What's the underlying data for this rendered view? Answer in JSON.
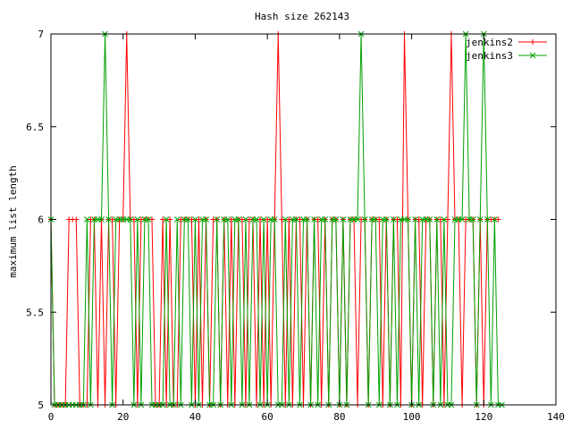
{
  "chart_data": {
    "type": "line",
    "title": "Hash size 262143",
    "xlabel": "",
    "ylabel": "maximum list length",
    "xlim": [
      0,
      140
    ],
    "ylim": [
      5,
      7
    ],
    "x_ticks": [
      "0",
      "20",
      "40",
      "60",
      "80",
      "100",
      "120",
      "140"
    ],
    "y_ticks": [
      "5",
      "5.5",
      "6",
      "6.5",
      "7"
    ],
    "grid": false,
    "legend_position": "top-right",
    "series": [
      {
        "name": "jenkins2",
        "color": "#ff0000",
        "marker": "plus",
        "x": [
          0,
          1,
          2,
          3,
          4,
          5,
          6,
          7,
          8,
          9,
          10,
          11,
          12,
          13,
          14,
          15,
          16,
          17,
          18,
          19,
          20,
          21,
          22,
          23,
          24,
          25,
          26,
          27,
          28,
          29,
          30,
          31,
          32,
          33,
          34,
          35,
          36,
          37,
          38,
          39,
          40,
          41,
          42,
          43,
          44,
          45,
          46,
          47,
          48,
          49,
          50,
          51,
          52,
          53,
          54,
          55,
          56,
          57,
          58,
          59,
          60,
          61,
          62,
          63,
          64,
          65,
          66,
          67,
          68,
          69,
          70,
          71,
          72,
          73,
          74,
          75,
          76,
          77,
          78,
          79,
          80,
          81,
          82,
          83,
          84,
          85,
          86,
          87,
          88,
          89,
          90,
          91,
          92,
          93,
          94,
          95,
          96,
          97,
          98,
          99,
          100,
          101,
          102,
          103,
          104,
          105,
          106,
          107,
          108,
          109,
          110,
          111,
          112,
          113,
          114,
          115,
          116,
          117,
          118,
          119,
          120,
          121,
          122,
          123,
          124
        ],
        "y": [
          6,
          5,
          5,
          5,
          5,
          6,
          6,
          6,
          5,
          5,
          5,
          6,
          6,
          5,
          6,
          5,
          6,
          6,
          5,
          6,
          6,
          7,
          6,
          6,
          5,
          6,
          6,
          6,
          6,
          5,
          5,
          6,
          5,
          6,
          5,
          5,
          6,
          6,
          6,
          6,
          5,
          6,
          5,
          6,
          5,
          6,
          6,
          5,
          6,
          5,
          6,
          5,
          6,
          6,
          5,
          6,
          6,
          5,
          6,
          5,
          6,
          5,
          6,
          7,
          6,
          5,
          6,
          5,
          6,
          6,
          5,
          6,
          5,
          6,
          6,
          5,
          6,
          5,
          6,
          6,
          5,
          6,
          5,
          6,
          6,
          5,
          6,
          6,
          5,
          6,
          6,
          6,
          5,
          6,
          5,
          6,
          6,
          5,
          7,
          6,
          5,
          6,
          6,
          5,
          6,
          6,
          5,
          6,
          6,
          5,
          6,
          7,
          6,
          6,
          5,
          6,
          6,
          6,
          5,
          6,
          5,
          6,
          6,
          6,
          6
        ]
      },
      {
        "name": "jenkins3",
        "color": "#00a000",
        "marker": "cross",
        "x": [
          0,
          1,
          2,
          3,
          4,
          5,
          6,
          7,
          8,
          9,
          10,
          11,
          12,
          13,
          14,
          15,
          16,
          17,
          18,
          19,
          20,
          21,
          22,
          23,
          24,
          25,
          26,
          27,
          28,
          29,
          30,
          31,
          32,
          33,
          34,
          35,
          36,
          37,
          38,
          39,
          40,
          41,
          42,
          43,
          44,
          45,
          46,
          47,
          48,
          49,
          50,
          51,
          52,
          53,
          54,
          55,
          56,
          57,
          58,
          59,
          60,
          61,
          62,
          63,
          64,
          65,
          66,
          67,
          68,
          69,
          70,
          71,
          72,
          73,
          74,
          75,
          76,
          77,
          78,
          79,
          80,
          81,
          82,
          83,
          84,
          85,
          86,
          87,
          88,
          89,
          90,
          91,
          92,
          93,
          94,
          95,
          96,
          97,
          98,
          99,
          100,
          101,
          102,
          103,
          104,
          105,
          106,
          107,
          108,
          109,
          110,
          111,
          112,
          113,
          114,
          115,
          116,
          117,
          118,
          119,
          120,
          121,
          122,
          123,
          124,
          125
        ],
        "y": [
          6,
          5,
          5,
          5,
          5,
          5,
          5,
          5,
          5,
          5,
          6,
          5,
          6,
          6,
          6,
          7,
          6,
          5,
          6,
          6,
          6,
          6,
          6,
          5,
          6,
          5,
          6,
          6,
          5,
          5,
          5,
          5,
          6,
          5,
          5,
          6,
          5,
          6,
          6,
          5,
          6,
          5,
          6,
          6,
          5,
          5,
          6,
          5,
          6,
          6,
          5,
          6,
          6,
          5,
          6,
          5,
          6,
          6,
          5,
          6,
          5,
          6,
          6,
          5,
          5,
          6,
          5,
          6,
          6,
          5,
          6,
          6,
          5,
          6,
          5,
          6,
          6,
          5,
          6,
          6,
          5,
          6,
          5,
          6,
          6,
          6,
          7,
          6,
          5,
          6,
          6,
          5,
          6,
          6,
          5,
          6,
          5,
          6,
          6,
          6,
          5,
          6,
          5,
          6,
          6,
          6,
          5,
          6,
          5,
          6,
          5,
          5,
          6,
          6,
          6,
          7,
          6,
          6,
          5,
          6,
          7,
          6,
          5,
          6,
          5,
          5
        ]
      }
    ]
  }
}
